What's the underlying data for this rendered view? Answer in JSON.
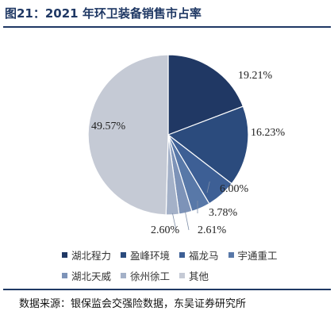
{
  "title": "图21：2021 年环卫装备销售市占率",
  "source": "数据来源：银保监会交强险数据，东吴证券研究所",
  "chart_data": {
    "type": "pie",
    "categories": [
      "湖北程力",
      "盈峰环境",
      "福龙马",
      "宇通重工",
      "湖北天威",
      "徐州徐工",
      "其他"
    ],
    "values": [
      19.21,
      16.23,
      6.0,
      3.78,
      2.61,
      2.6,
      49.57
    ],
    "labels": [
      "19.21%",
      "16.23%",
      "6.00%",
      "3.78%",
      "2.61%",
      "2.60%",
      "49.57%"
    ],
    "colors": [
      "#203864",
      "#2b4b7d",
      "#3d5f95",
      "#5878a8",
      "#7d93b8",
      "#a4b1c8",
      "#c5cad5"
    ],
    "legend_position": "bottom"
  }
}
